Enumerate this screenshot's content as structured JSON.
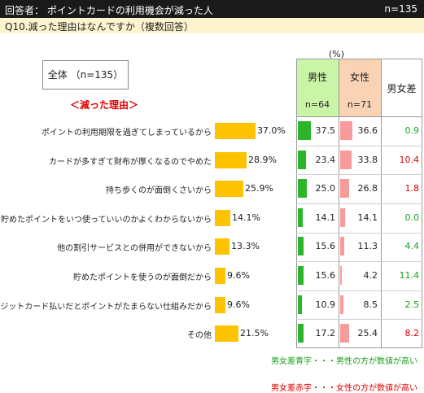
{
  "header": {
    "title": "回答者： ポイントカードの利用機会が減った人",
    "n": "n=135"
  },
  "question": "Q10.減った理由はなんですか（複数回答）",
  "total_box": "全体 （n=135）",
  "reason_label": "＜減った理由＞",
  "unit": "(%)",
  "columns": {
    "male": {
      "name": "男性",
      "n": "n=64"
    },
    "female": {
      "name": "女性",
      "n": "n=71"
    },
    "diff": "男女差"
  },
  "colors": {
    "total_bar": "#fdc300",
    "male_bar": "#2ab52a",
    "female_bar": "#fa9b9b",
    "male_header": "#cbf5a6",
    "female_header": "#f9d3b3",
    "diff_male_higher": "#1aa01a",
    "diff_female_higher": "#e00000"
  },
  "chart_data": {
    "type": "bar",
    "categories": [
      "ポイントの利用期限を過ぎてしまっているから",
      "カードが多すぎて財布が厚くなるのでやめた",
      "持ち歩くのが面倒くさいから",
      "貯めたポイントをいつ使っていいのかよくわからないから",
      "他の割引サービスとの併用ができないから",
      "貯めたポイントを使うのが面倒だから",
      "クレジットカード払いだとポイントがたまらない仕組みだから",
      "その他"
    ],
    "series": [
      {
        "name": "全体",
        "values": [
          37.0,
          28.9,
          25.9,
          14.1,
          13.3,
          9.6,
          9.6,
          21.5
        ],
        "labels": [
          "37.0%",
          "28.9%",
          "25.9%",
          "14.1%",
          "13.3%",
          "9.6%",
          "9.6%",
          "21.5%"
        ]
      },
      {
        "name": "男性",
        "values": [
          37.5,
          23.4,
          25.0,
          14.1,
          15.6,
          15.6,
          10.9,
          17.2
        ],
        "labels": [
          "37.5",
          "23.4",
          "25.0",
          "14.1",
          "15.6",
          "15.6",
          "10.9",
          "17.2"
        ]
      },
      {
        "name": "女性",
        "values": [
          36.6,
          33.8,
          26.8,
          14.1,
          11.3,
          4.2,
          8.5,
          25.4
        ],
        "labels": [
          "36.6",
          "33.8",
          "26.8",
          "14.1",
          "11.3",
          "4.2",
          "8.5",
          "25.4"
        ]
      },
      {
        "name": "男女差",
        "values": [
          0.9,
          10.4,
          1.8,
          0.0,
          4.4,
          11.4,
          2.5,
          8.2
        ],
        "labels": [
          "0.9",
          "10.4",
          "1.8",
          "0.0",
          "4.4",
          "11.4",
          "2.5",
          "8.2"
        ],
        "higher": [
          "male",
          "female",
          "female",
          "male",
          "male",
          "male",
          "male",
          "female"
        ]
      }
    ],
    "xlim": [
      0,
      100
    ]
  },
  "footnotes": {
    "blue": "男女差青字・・・男性の方が数値が高い",
    "red": "男女差赤字・・・女性の方が数値が高い"
  }
}
